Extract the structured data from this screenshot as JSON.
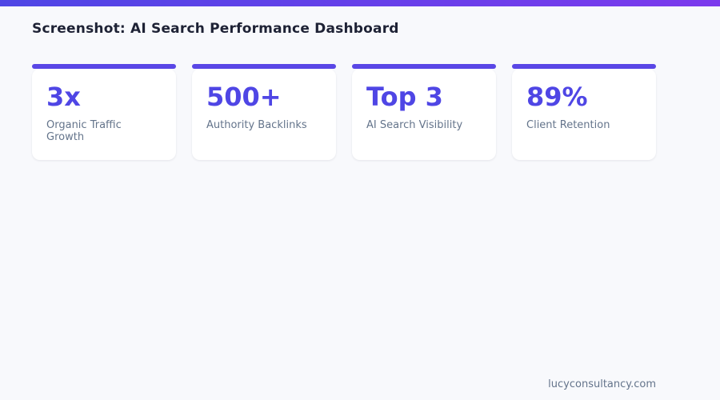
{
  "page": {
    "title": "Screenshot: AI Search Performance Dashboard",
    "footer_domain": "lucyconsultancy.com"
  },
  "colors": {
    "top_bar_gradient_start": "#4f46e5",
    "top_bar_gradient_end": "#7c3aed",
    "card_accent": "#5a47e6",
    "stat_value": "#4f46e5",
    "stat_label": "#64748b",
    "title_text": "#1e2235",
    "background": "#f8f9fc",
    "card_background": "#ffffff"
  },
  "stats": [
    {
      "value": "3x",
      "label": "Organic Traffic Growth"
    },
    {
      "value": "500+",
      "label": "Authority Backlinks"
    },
    {
      "value": "Top 3",
      "label": "AI Search Visibility"
    },
    {
      "value": "89%",
      "label": "Client Retention"
    }
  ]
}
